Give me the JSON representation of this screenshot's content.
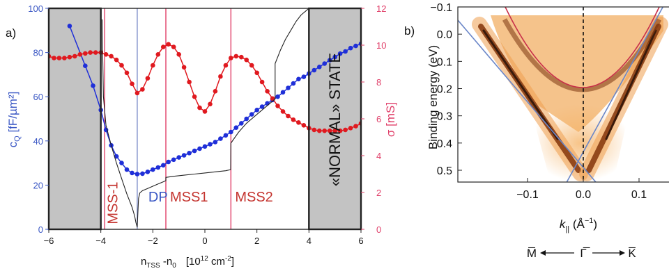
{
  "chart_data": [
    {
      "panel_label": "a)",
      "type": "line",
      "xlabel": "n",
      "xlabel_sub": "TSS",
      "xlabel_rest": " -n",
      "xlabel_sub2": "0",
      "xlabel_units": "[10",
      "xlabel_sup": "12",
      "xlabel_units2": " cm",
      "xlabel_sup2": "-2",
      "xlabel_units3": "]",
      "xlim": [
        -6,
        6
      ],
      "xticks": [
        "−6",
        "−4",
        "−2",
        "0",
        "2",
        "4",
        "6"
      ],
      "y_left_label": "c",
      "y_left_sub": "Q",
      "y_left_units": " [fF/µm²]",
      "y_left_lim": [
        0,
        100
      ],
      "y_left_ticks": [
        "0",
        "20",
        "40",
        "60",
        "80",
        "100"
      ],
      "y_left_color": "#3a57c4",
      "y_right_label": "σ [mS]",
      "y_right_lim": [
        0,
        12
      ],
      "y_right_ticks": [
        "0",
        "2",
        "4",
        "6",
        "8",
        "10",
        "12"
      ],
      "y_right_color": "#e0406a",
      "shaded_regions": [
        [
          -6,
          -4
        ],
        [
          4,
          6
        ]
      ],
      "shaded_label": "«NORMAL» STATE",
      "vertical_markers": [
        {
          "x": -3.85,
          "label": "MSS-1",
          "color": "#e0406a"
        },
        {
          "x": -2.6,
          "label": "DP",
          "color": "#7f8fc9"
        },
        {
          "x": -1.5,
          "label": "MSS1",
          "color": "#e0406a"
        },
        {
          "x": 1.0,
          "label": "MSS2",
          "color": "#e0406a"
        }
      ],
      "series": [
        {
          "axis": "left",
          "color": "#1f2fd8",
          "x": [
            -5.2,
            -4.6,
            -4.3,
            -4.0,
            -3.8,
            -3.6,
            -3.4,
            -3.2,
            -3.0,
            -2.8,
            -2.6,
            -2.4,
            -2.2,
            -2.0,
            -1.8,
            -1.6,
            -1.4,
            -1.2,
            -1.0,
            -0.8,
            -0.6,
            -0.4,
            -0.2,
            0.0,
            0.2,
            0.4,
            0.6,
            0.8,
            1.0,
            1.2,
            1.4,
            1.6,
            1.8,
            2.0,
            2.2,
            2.4,
            2.6,
            2.8,
            3.0,
            3.2,
            3.4,
            3.6,
            3.8,
            4.0,
            4.2,
            4.4,
            4.6,
            4.8,
            5.0,
            5.2,
            5.4,
            5.6,
            5.8,
            6.0
          ],
          "y": [
            92,
            74,
            65,
            54,
            45,
            38,
            33,
            30,
            27,
            25.5,
            25,
            25.2,
            26,
            27,
            28,
            29,
            30.5,
            31.5,
            32.5,
            33.5,
            34.5,
            35.5,
            36.5,
            37.5,
            38.5,
            39.5,
            41,
            42.5,
            44,
            46,
            48,
            50,
            52,
            54,
            55.5,
            57,
            58.5,
            60,
            62,
            64,
            66,
            68,
            69,
            70.5,
            72,
            73.5,
            75,
            76.5,
            78,
            79.5,
            80.5,
            82,
            83,
            84
          ]
        },
        {
          "axis": "right",
          "color": "#e0191f",
          "x": [
            -6.0,
            -5.8,
            -5.6,
            -5.4,
            -5.2,
            -5.0,
            -4.8,
            -4.6,
            -4.4,
            -4.2,
            -4.0,
            -3.8,
            -3.6,
            -3.4,
            -3.2,
            -3.0,
            -2.8,
            -2.6,
            -2.4,
            -2.2,
            -2.0,
            -1.8,
            -1.6,
            -1.4,
            -1.2,
            -1.0,
            -0.8,
            -0.6,
            -0.4,
            -0.2,
            0.0,
            0.2,
            0.4,
            0.6,
            0.8,
            1.0,
            1.2,
            1.4,
            1.6,
            1.8,
            2.0,
            2.2,
            2.4,
            2.6,
            2.8,
            3.0,
            3.2,
            3.4,
            3.6,
            3.8,
            4.0,
            4.2,
            4.4,
            4.6,
            4.8,
            5.0,
            5.2,
            5.4,
            5.6,
            5.8,
            6.0
          ],
          "y": [
            9.4,
            9.3,
            9.3,
            9.3,
            9.35,
            9.4,
            9.5,
            9.55,
            9.6,
            9.6,
            9.6,
            9.5,
            9.4,
            9.2,
            8.9,
            8.5,
            7.9,
            7.4,
            7.6,
            8.2,
            8.9,
            9.5,
            9.9,
            10.05,
            9.9,
            9.5,
            8.8,
            8.0,
            7.2,
            6.6,
            6.4,
            6.8,
            7.5,
            8.3,
            8.9,
            9.3,
            9.4,
            9.35,
            9.2,
            8.9,
            8.5,
            8.0,
            7.5,
            7.1,
            6.7,
            6.4,
            6.15,
            5.95,
            5.8,
            5.65,
            5.5,
            5.4,
            5.35,
            5.35,
            5.35,
            5.35,
            5.35,
            5.4,
            5.5,
            5.6,
            5.75
          ]
        },
        {
          "axis": "left",
          "color": "#222222",
          "style": "thin line",
          "x": [
            -3.95,
            -3.9,
            -3.8,
            -3.6,
            -3.4,
            -3.2,
            -3.0,
            -2.8,
            -2.7,
            -2.65,
            -2.6,
            -2.55,
            -2.5,
            -2.4,
            -2.2,
            -2.0,
            -1.8,
            -1.6,
            -1.5,
            -1.5,
            -1.2,
            -0.8,
            -0.4,
            0.0,
            0.4,
            0.8,
            0.99,
            1.0,
            1.3,
            1.6,
            2.0,
            2.4,
            2.7,
            2.7,
            2.9,
            3.1,
            3.3,
            3.5,
            3.7,
            3.9,
            4.0
          ],
          "y": [
            95,
            60,
            47,
            38,
            30,
            23,
            16,
            10,
            6,
            3,
            1,
            14,
            16.5,
            17.5,
            18.5,
            19.5,
            20.5,
            21.5,
            22,
            23.5,
            24,
            24.5,
            25,
            25.5,
            26,
            26.5,
            27,
            39,
            44,
            48,
            52,
            56,
            59,
            75,
            81,
            86,
            90,
            94,
            97,
            99,
            100
          ]
        }
      ]
    },
    {
      "panel_label": "b)",
      "type": "heatmap",
      "ylabel": "Binding energy (eV)",
      "ylim": [
        -0.1,
        0.55
      ],
      "yticks": [
        "−0.1",
        "0.0",
        "0.1",
        "0.2",
        "0.3",
        "0.4",
        "0.5"
      ],
      "xlabel": "k",
      "xlabel_sub": "||",
      "xlabel_units": " (Å",
      "xlabel_sup": "−1",
      "xlabel_units2": ")",
      "xlim": [
        -0.15,
        0.15
      ],
      "xticks": [
        "−0.1",
        "0.0",
        "0.1"
      ],
      "direction_labels": [
        "M̅",
        "Γ̅",
        "K̅"
      ],
      "colormap": [
        "#ffffff",
        "#f2a14a",
        "#2a1208"
      ],
      "overlays": [
        {
          "name": "dirac-cone",
          "color": "#6a86c8",
          "type": "lines",
          "apex": [
            0.0,
            0.5
          ]
        },
        {
          "name": "parabolic-band",
          "color": "#c8304a",
          "type": "parabola",
          "vertex": [
            0.0,
            0.2
          ]
        },
        {
          "name": "gamma-line",
          "color": "#111111",
          "type": "dashed",
          "x": 0.0
        }
      ]
    }
  ]
}
